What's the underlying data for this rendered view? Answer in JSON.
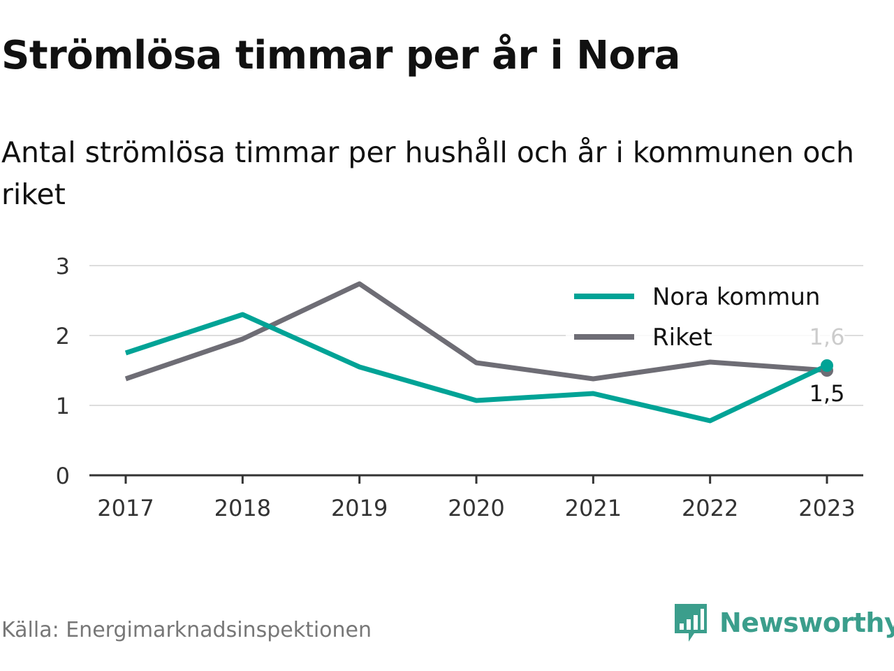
{
  "title": "Strömlösa timmar per år i Nora",
  "subtitle": "Antal strömlösa timmar per hushåll och år i kommunen och riket",
  "source": "Källa: Energimarknadsinspektionen",
  "brand": {
    "name": "Newsworthy",
    "icon": "newsworthy-logo-icon",
    "color": "#3b9e8c"
  },
  "chart_data": {
    "type": "line",
    "x": [
      "2017",
      "2018",
      "2019",
      "2020",
      "2021",
      "2022",
      "2023"
    ],
    "ylim": [
      0,
      3
    ],
    "yticks": [
      "0",
      "1",
      "2",
      "3"
    ],
    "grid": true,
    "legend_position": "top-right",
    "series": [
      {
        "name": "Nora kommun",
        "color": "#00a396",
        "values": [
          1.75,
          2.3,
          1.55,
          1.07,
          1.17,
          0.78,
          1.57
        ]
      },
      {
        "name": "Riket",
        "color": "#6e6d75",
        "values": [
          1.38,
          1.95,
          2.74,
          1.61,
          1.38,
          1.62,
          1.5
        ]
      }
    ],
    "end_labels": [
      {
        "series": "Nora kommun",
        "text": "1,6"
      },
      {
        "series": "Riket",
        "text": "1,5"
      }
    ]
  }
}
